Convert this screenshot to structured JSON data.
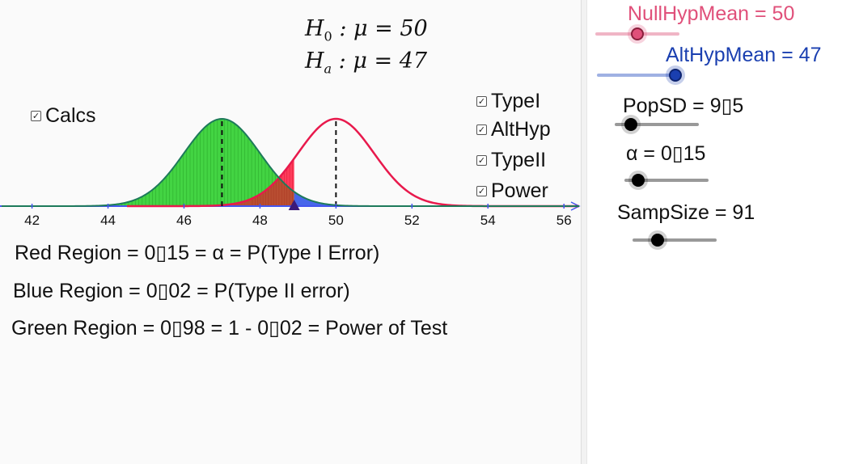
{
  "hypotheses": {
    "h0_prefix": "H",
    "h0_sub": "0",
    "h0_rest": " : μ = 50",
    "ha_prefix": "H",
    "ha_sub": "a",
    "ha_rest": " : μ = 47"
  },
  "checkboxes": {
    "calcs": "Calcs",
    "typeI": "TypeI",
    "altHyp": "AltHyp",
    "typeII": "TypeII",
    "power": "Power",
    "check_glyph": "✓"
  },
  "calcs": {
    "red": "Red Region = 0▯15 = α = P(Type I Error)",
    "blue": "Blue Region = 0▯02 = P(Type II error)",
    "green": "Green Region = 0▯98 = 1 - 0▯02 = Power of Test"
  },
  "sliders": {
    "null_mean": {
      "label": "NullHypMean = 50",
      "color": "#e0507a",
      "value": 50,
      "level": 0.5
    },
    "alt_mean": {
      "label": "AltHypMean = 47",
      "color": "#1a3fb0",
      "value": 47,
      "level": 0.93
    },
    "pop_sd": {
      "label": "PopSD = 9▯5",
      "color": "#000000",
      "level": 0.19
    },
    "alpha": {
      "label": "α = 0▯15",
      "color": "#000000",
      "level": 0.16
    },
    "samp_size": {
      "label": "SampSize = 91",
      "color": "#000000",
      "level": 0.3
    }
  },
  "chart_data": {
    "type": "area",
    "xlim": [
      41.2,
      56.4
    ],
    "x_ticks": [
      42,
      44,
      46,
      48,
      50,
      52,
      54,
      56
    ],
    "null_mean": 50,
    "alt_mean": 47,
    "curve_sd": 1.0,
    "critical_value": 48.9,
    "series": [
      {
        "name": "Null distribution",
        "color": "#e8194c"
      },
      {
        "name": "Alternative distribution",
        "color": "#2d9e2d"
      }
    ],
    "regions": {
      "red": {
        "value": 0.15,
        "color": "#ff1a40"
      },
      "blue": {
        "value": 0.02,
        "color": "#3355e8"
      },
      "green": {
        "value": 0.98,
        "color": "#22cc22"
      }
    },
    "axis_color": "#4455ee"
  }
}
